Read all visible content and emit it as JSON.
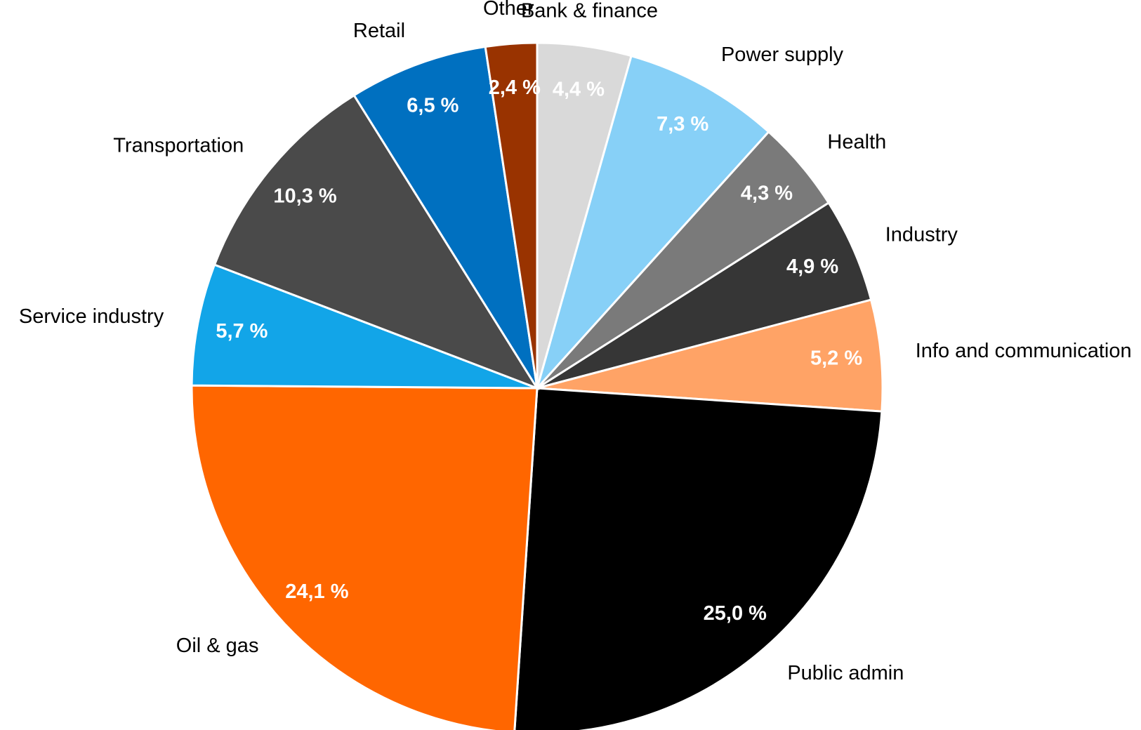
{
  "chart_data": {
    "type": "pie",
    "categories": [
      "Bank & finance",
      "Power supply",
      "Health",
      "Industry",
      "Info and communication",
      "Public admin",
      "Oil & gas",
      "Service industry",
      "Transportation",
      "Retail",
      "Other"
    ],
    "values": [
      4.4,
      7.3,
      4.3,
      4.9,
      5.2,
      25.0,
      24.1,
      5.7,
      10.3,
      6.5,
      2.4
    ],
    "value_labels": [
      "4,4 %",
      "7,3 %",
      "4,3 %",
      "4,9 %",
      "5,2 %",
      "25,0 %",
      "24,1 %",
      "5,7 %",
      "10,3 %",
      "6,5 %",
      "2,4 %"
    ],
    "colors": [
      "#d9d9d9",
      "#87d0f7",
      "#7a7a7a",
      "#363636",
      "#ffa366",
      "#000000",
      "#ff6600",
      "#12a5e8",
      "#4a4a4a",
      "#0070c0",
      "#993300"
    ]
  }
}
